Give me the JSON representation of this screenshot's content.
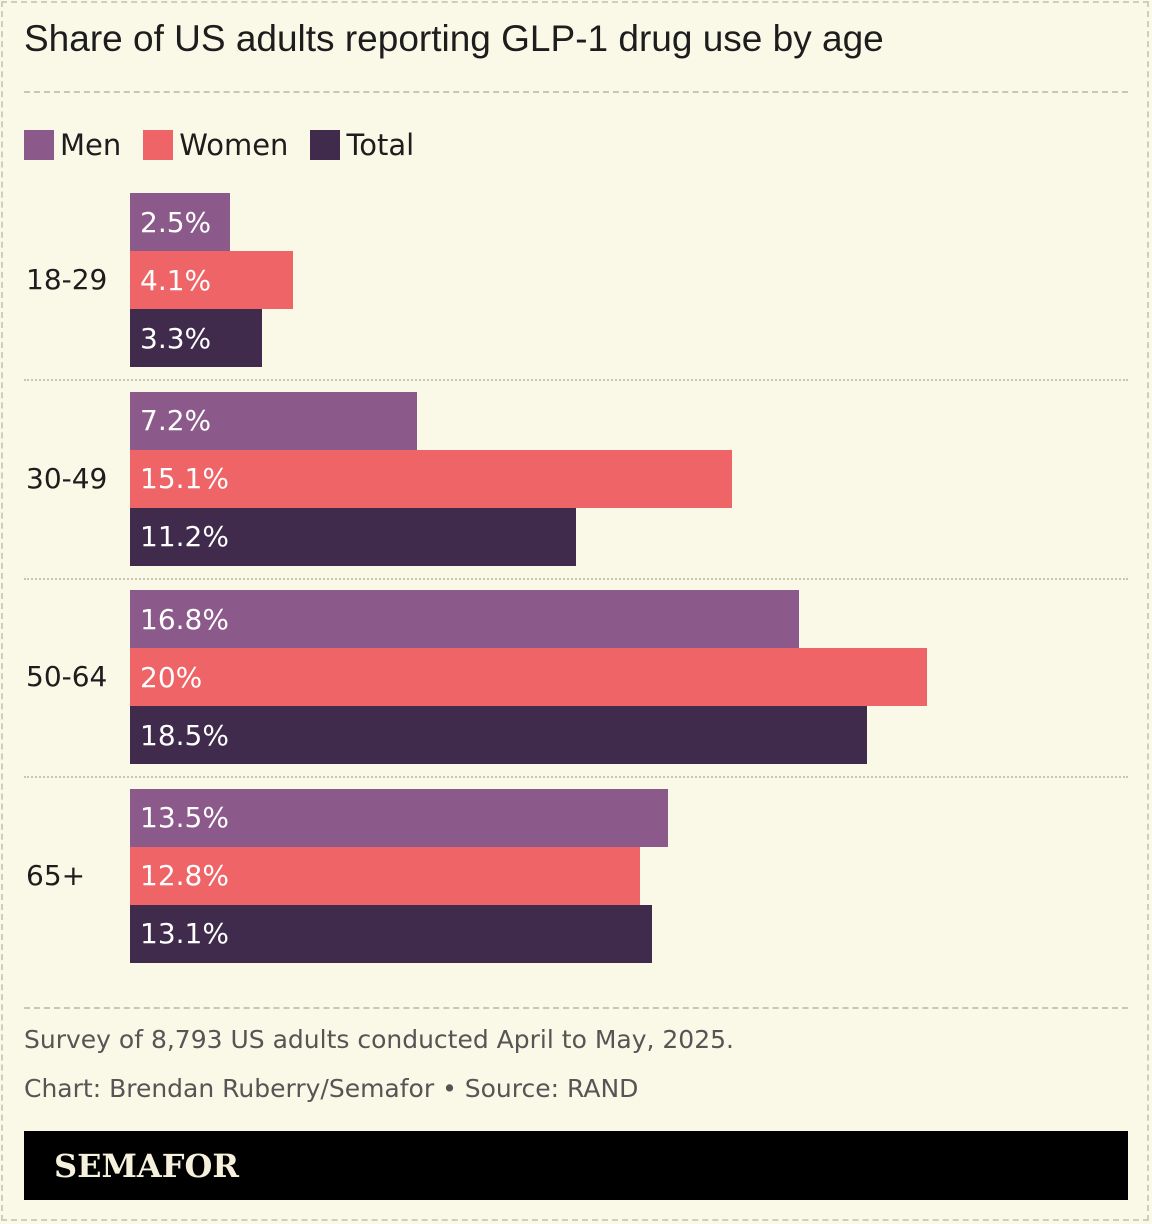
{
  "title": "Share of US adults reporting GLP-1 drug use by age",
  "legend": [
    {
      "name": "Men",
      "color": "#8c5a8a"
    },
    {
      "name": "Women",
      "color": "#ee6467"
    },
    {
      "name": "Total",
      "color": "#402b4d"
    }
  ],
  "chart_data": {
    "type": "bar",
    "orientation": "horizontal",
    "title": "Share of US adults reporting GLP-1 drug use by age",
    "categories": [
      "18-29",
      "30-49",
      "50-64",
      "65+"
    ],
    "series": [
      {
        "name": "Men",
        "values": [
          2.5,
          7.2,
          16.8,
          13.5
        ],
        "labels": [
          "2.5%",
          "7.2%",
          "16.8%",
          "13.5%"
        ]
      },
      {
        "name": "Women",
        "values": [
          4.1,
          15.1,
          20,
          12.8
        ],
        "labels": [
          "4.1%",
          "15.1%",
          "20%",
          "12.8%"
        ]
      },
      {
        "name": "Total",
        "values": [
          3.3,
          11.2,
          18.5,
          13.1
        ],
        "labels": [
          "3.3%",
          "11.2%",
          "18.5%",
          "13.1%"
        ]
      }
    ],
    "xlim": [
      0,
      20
    ],
    "xlabel": "",
    "ylabel": "",
    "grid": false,
    "legend_position": "top-left"
  },
  "notes": {
    "survey": "Survey of 8,793 US adults conducted April to May, 2025.",
    "credit": "Chart: Brendan Ruberry/Semafor • Source: RAND"
  },
  "brand": "SEMAFOR"
}
